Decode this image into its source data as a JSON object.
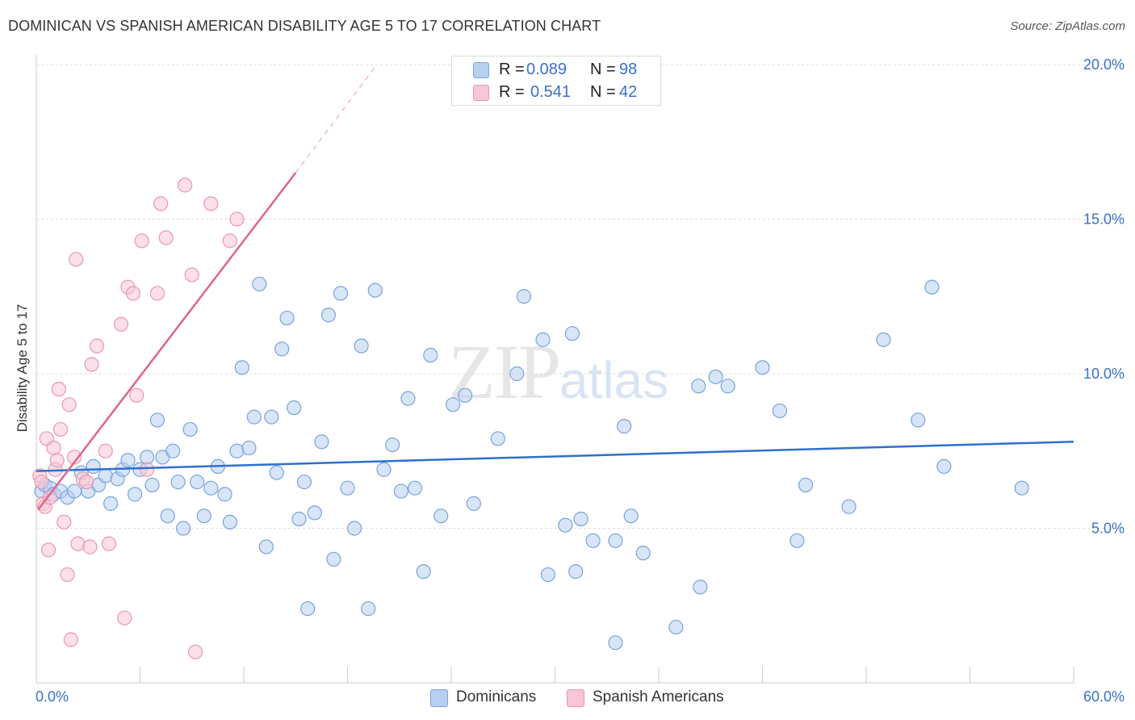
{
  "title": "DOMINICAN VS SPANISH AMERICAN DISABILITY AGE 5 TO 17 CORRELATION CHART",
  "source": "Source: ZipAtlas.com",
  "watermark": {
    "zip": "ZIP",
    "atlas": "atlas"
  },
  "legend": {
    "series1": {
      "r_label": "R =",
      "r_value": "0.089",
      "n_label": "N =",
      "n_value": "98"
    },
    "series2": {
      "r_label": "R =",
      "r_value": "0.541",
      "n_label": "N =",
      "n_value": "42"
    }
  },
  "colors": {
    "blue_fill": "#b7d0f1",
    "blue_stroke": "#7aa3dc",
    "blue_line": "#2f6fcd",
    "pink_fill": "#f8c6d4",
    "pink_stroke": "#eb96b1",
    "pink_line": "#e0648c",
    "axis_text": "#3a6fc9",
    "grid": "#dddddd"
  },
  "chart_data": {
    "type": "scatter",
    "title": "DOMINICAN VS SPANISH AMERICAN DISABILITY AGE 5 TO 17 CORRELATION CHART",
    "xlabel": "",
    "ylabel": "Disability Age 5 to 17",
    "xlim": [
      0,
      60
    ],
    "ylim": [
      0,
      20
    ],
    "x_tick_labels": {
      "min": "0.0%",
      "max": "60.0%"
    },
    "y_ticks": [
      {
        "value": 5,
        "label": "5.0%"
      },
      {
        "value": 10,
        "label": "10.0%"
      },
      {
        "value": 15,
        "label": "15.0%"
      },
      {
        "value": 20,
        "label": "20.0%"
      }
    ],
    "series": [
      {
        "name": "Dominicans",
        "r": 0.089,
        "n": 98,
        "trend": {
          "x": [
            0,
            60
          ],
          "y": [
            6.85,
            7.8
          ]
        },
        "points": [
          [
            0.3,
            6.2
          ],
          [
            0.5,
            6.4
          ],
          [
            0.8,
            6.3
          ],
          [
            1.0,
            6.1
          ],
          [
            1.4,
            6.2
          ],
          [
            1.8,
            6.0
          ],
          [
            2.2,
            6.2
          ],
          [
            2.6,
            6.8
          ],
          [
            3.0,
            6.2
          ],
          [
            3.3,
            7.0
          ],
          [
            3.6,
            6.4
          ],
          [
            4.0,
            6.7
          ],
          [
            4.3,
            5.8
          ],
          [
            4.7,
            6.6
          ],
          [
            5.0,
            6.9
          ],
          [
            5.3,
            7.2
          ],
          [
            5.7,
            6.1
          ],
          [
            6.0,
            6.9
          ],
          [
            6.4,
            7.3
          ],
          [
            6.7,
            6.4
          ],
          [
            7.0,
            8.5
          ],
          [
            7.3,
            7.3
          ],
          [
            7.6,
            5.4
          ],
          [
            7.9,
            7.5
          ],
          [
            8.2,
            6.5
          ],
          [
            8.5,
            5.0
          ],
          [
            8.9,
            8.2
          ],
          [
            9.3,
            6.5
          ],
          [
            9.7,
            5.4
          ],
          [
            10.1,
            6.3
          ],
          [
            10.5,
            7.0
          ],
          [
            10.9,
            6.1
          ],
          [
            11.2,
            5.2
          ],
          [
            11.6,
            7.5
          ],
          [
            11.9,
            10.2
          ],
          [
            12.3,
            7.6
          ],
          [
            12.6,
            8.6
          ],
          [
            12.9,
            12.9
          ],
          [
            13.3,
            4.4
          ],
          [
            13.6,
            8.6
          ],
          [
            13.9,
            6.8
          ],
          [
            14.2,
            10.8
          ],
          [
            14.5,
            11.8
          ],
          [
            14.9,
            8.9
          ],
          [
            15.2,
            5.3
          ],
          [
            15.5,
            6.5
          ],
          [
            15.7,
            2.4
          ],
          [
            16.1,
            5.5
          ],
          [
            16.5,
            7.8
          ],
          [
            16.9,
            11.9
          ],
          [
            17.2,
            4.0
          ],
          [
            17.6,
            12.6
          ],
          [
            18.0,
            6.3
          ],
          [
            18.4,
            5.0
          ],
          [
            18.8,
            10.9
          ],
          [
            19.2,
            2.4
          ],
          [
            19.6,
            12.7
          ],
          [
            20.1,
            6.9
          ],
          [
            20.6,
            7.7
          ],
          [
            21.1,
            6.2
          ],
          [
            21.5,
            9.2
          ],
          [
            21.9,
            6.3
          ],
          [
            22.4,
            3.6
          ],
          [
            22.8,
            10.6
          ],
          [
            23.4,
            5.4
          ],
          [
            24.1,
            9.0
          ],
          [
            24.8,
            9.3
          ],
          [
            25.3,
            5.8
          ],
          [
            26.7,
            7.9
          ],
          [
            27.8,
            10.0
          ],
          [
            28.2,
            12.5
          ],
          [
            29.3,
            11.1
          ],
          [
            29.6,
            3.5
          ],
          [
            30.6,
            5.1
          ],
          [
            31.0,
            11.3
          ],
          [
            31.2,
            3.6
          ],
          [
            31.5,
            5.3
          ],
          [
            32.2,
            4.6
          ],
          [
            33.5,
            4.6
          ],
          [
            33.5,
            1.3
          ],
          [
            34.0,
            8.3
          ],
          [
            34.4,
            5.4
          ],
          [
            35.1,
            4.2
          ],
          [
            37.0,
            1.8
          ],
          [
            38.3,
            9.6
          ],
          [
            38.4,
            3.1
          ],
          [
            39.3,
            9.9
          ],
          [
            40.0,
            9.6
          ],
          [
            42.0,
            10.2
          ],
          [
            43.0,
            8.8
          ],
          [
            44.0,
            4.6
          ],
          [
            44.5,
            6.4
          ],
          [
            47.0,
            5.7
          ],
          [
            49.0,
            11.1
          ],
          [
            51.0,
            8.5
          ],
          [
            51.8,
            12.8
          ],
          [
            52.5,
            7.0
          ],
          [
            57.0,
            6.3
          ]
        ]
      },
      {
        "name": "Spanish Americans",
        "r": 0.541,
        "n": 42,
        "trend": {
          "x": [
            0.1,
            15.0
          ],
          "y": [
            5.6,
            16.5
          ]
        },
        "trend_dashed": {
          "x": [
            15.0,
            19.7
          ],
          "y": [
            16.5,
            20.0
          ]
        },
        "points": [
          [
            0.2,
            6.7
          ],
          [
            0.3,
            6.5
          ],
          [
            0.4,
            5.8
          ],
          [
            0.5,
            5.7
          ],
          [
            0.6,
            7.9
          ],
          [
            0.7,
            4.3
          ],
          [
            0.8,
            6.0
          ],
          [
            1.0,
            7.6
          ],
          [
            1.1,
            6.9
          ],
          [
            1.2,
            7.2
          ],
          [
            1.3,
            9.5
          ],
          [
            1.4,
            8.2
          ],
          [
            1.6,
            5.2
          ],
          [
            1.8,
            3.5
          ],
          [
            1.9,
            9.0
          ],
          [
            2.0,
            1.4
          ],
          [
            2.2,
            7.3
          ],
          [
            2.3,
            13.7
          ],
          [
            2.4,
            4.5
          ],
          [
            2.7,
            6.6
          ],
          [
            2.9,
            6.5
          ],
          [
            3.1,
            4.4
          ],
          [
            3.2,
            10.3
          ],
          [
            3.5,
            10.9
          ],
          [
            4.0,
            7.5
          ],
          [
            4.2,
            4.5
          ],
          [
            4.9,
            11.6
          ],
          [
            5.1,
            2.1
          ],
          [
            5.3,
            12.8
          ],
          [
            5.6,
            12.6
          ],
          [
            5.8,
            9.3
          ],
          [
            6.1,
            14.3
          ],
          [
            6.4,
            6.9
          ],
          [
            7.0,
            12.6
          ],
          [
            7.2,
            15.5
          ],
          [
            7.5,
            14.4
          ],
          [
            8.6,
            16.1
          ],
          [
            9.0,
            13.2
          ],
          [
            9.2,
            1.0
          ],
          [
            10.1,
            15.5
          ],
          [
            11.2,
            14.3
          ],
          [
            11.6,
            15.0
          ]
        ]
      }
    ]
  },
  "bottom_legend": {
    "series1": "Dominicans",
    "series2": "Spanish Americans"
  }
}
